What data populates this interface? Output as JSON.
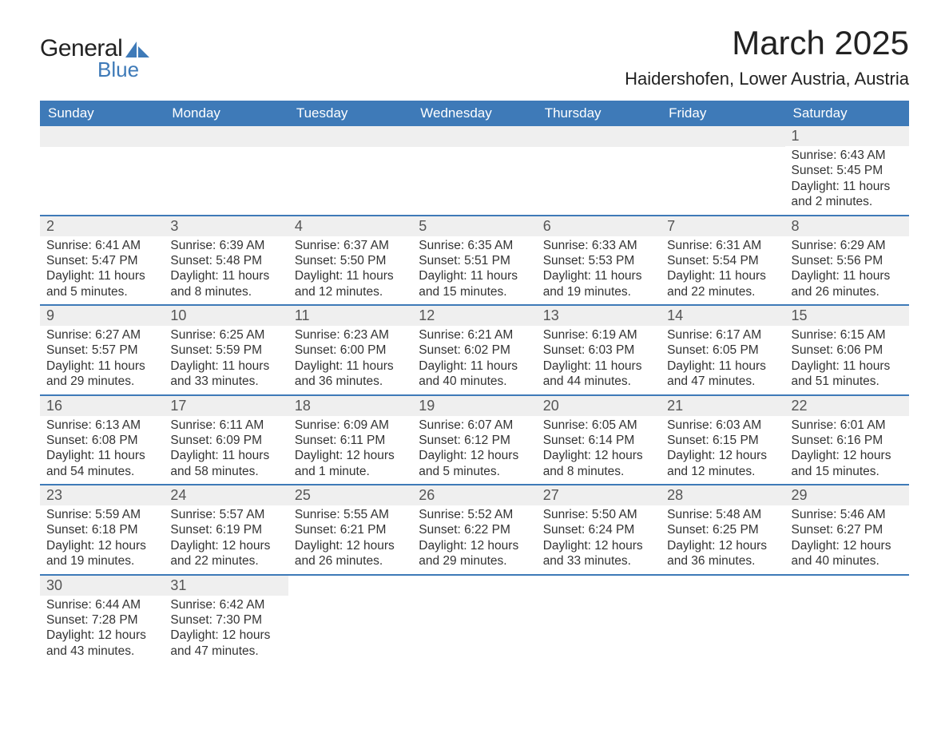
{
  "logo": {
    "general": "General",
    "blue": "Blue"
  },
  "title": "March 2025",
  "location": "Haidershofen, Lower Austria, Austria",
  "colors": {
    "header_bg": "#3e7ab8",
    "header_text": "#ffffff",
    "daynum_bg": "#efefef",
    "row_border": "#3e7ab8",
    "body_text": "#333333"
  },
  "weekdays": [
    "Sunday",
    "Monday",
    "Tuesday",
    "Wednesday",
    "Thursday",
    "Friday",
    "Saturday"
  ],
  "calendar": {
    "first_weekday_index": 6,
    "num_days": 31,
    "days": {
      "1": {
        "sunrise": "6:43 AM",
        "sunset": "5:45 PM",
        "daylight": "11 hours and 2 minutes."
      },
      "2": {
        "sunrise": "6:41 AM",
        "sunset": "5:47 PM",
        "daylight": "11 hours and 5 minutes."
      },
      "3": {
        "sunrise": "6:39 AM",
        "sunset": "5:48 PM",
        "daylight": "11 hours and 8 minutes."
      },
      "4": {
        "sunrise": "6:37 AM",
        "sunset": "5:50 PM",
        "daylight": "11 hours and 12 minutes."
      },
      "5": {
        "sunrise": "6:35 AM",
        "sunset": "5:51 PM",
        "daylight": "11 hours and 15 minutes."
      },
      "6": {
        "sunrise": "6:33 AM",
        "sunset": "5:53 PM",
        "daylight": "11 hours and 19 minutes."
      },
      "7": {
        "sunrise": "6:31 AM",
        "sunset": "5:54 PM",
        "daylight": "11 hours and 22 minutes."
      },
      "8": {
        "sunrise": "6:29 AM",
        "sunset": "5:56 PM",
        "daylight": "11 hours and 26 minutes."
      },
      "9": {
        "sunrise": "6:27 AM",
        "sunset": "5:57 PM",
        "daylight": "11 hours and 29 minutes."
      },
      "10": {
        "sunrise": "6:25 AM",
        "sunset": "5:59 PM",
        "daylight": "11 hours and 33 minutes."
      },
      "11": {
        "sunrise": "6:23 AM",
        "sunset": "6:00 PM",
        "daylight": "11 hours and 36 minutes."
      },
      "12": {
        "sunrise": "6:21 AM",
        "sunset": "6:02 PM",
        "daylight": "11 hours and 40 minutes."
      },
      "13": {
        "sunrise": "6:19 AM",
        "sunset": "6:03 PM",
        "daylight": "11 hours and 44 minutes."
      },
      "14": {
        "sunrise": "6:17 AM",
        "sunset": "6:05 PM",
        "daylight": "11 hours and 47 minutes."
      },
      "15": {
        "sunrise": "6:15 AM",
        "sunset": "6:06 PM",
        "daylight": "11 hours and 51 minutes."
      },
      "16": {
        "sunrise": "6:13 AM",
        "sunset": "6:08 PM",
        "daylight": "11 hours and 54 minutes."
      },
      "17": {
        "sunrise": "6:11 AM",
        "sunset": "6:09 PM",
        "daylight": "11 hours and 58 minutes."
      },
      "18": {
        "sunrise": "6:09 AM",
        "sunset": "6:11 PM",
        "daylight": "12 hours and 1 minute."
      },
      "19": {
        "sunrise": "6:07 AM",
        "sunset": "6:12 PM",
        "daylight": "12 hours and 5 minutes."
      },
      "20": {
        "sunrise": "6:05 AM",
        "sunset": "6:14 PM",
        "daylight": "12 hours and 8 minutes."
      },
      "21": {
        "sunrise": "6:03 AM",
        "sunset": "6:15 PM",
        "daylight": "12 hours and 12 minutes."
      },
      "22": {
        "sunrise": "6:01 AM",
        "sunset": "6:16 PM",
        "daylight": "12 hours and 15 minutes."
      },
      "23": {
        "sunrise": "5:59 AM",
        "sunset": "6:18 PM",
        "daylight": "12 hours and 19 minutes."
      },
      "24": {
        "sunrise": "5:57 AM",
        "sunset": "6:19 PM",
        "daylight": "12 hours and 22 minutes."
      },
      "25": {
        "sunrise": "5:55 AM",
        "sunset": "6:21 PM",
        "daylight": "12 hours and 26 minutes."
      },
      "26": {
        "sunrise": "5:52 AM",
        "sunset": "6:22 PM",
        "daylight": "12 hours and 29 minutes."
      },
      "27": {
        "sunrise": "5:50 AM",
        "sunset": "6:24 PM",
        "daylight": "12 hours and 33 minutes."
      },
      "28": {
        "sunrise": "5:48 AM",
        "sunset": "6:25 PM",
        "daylight": "12 hours and 36 minutes."
      },
      "29": {
        "sunrise": "5:46 AM",
        "sunset": "6:27 PM",
        "daylight": "12 hours and 40 minutes."
      },
      "30": {
        "sunrise": "6:44 AM",
        "sunset": "7:28 PM",
        "daylight": "12 hours and 43 minutes."
      },
      "31": {
        "sunrise": "6:42 AM",
        "sunset": "7:30 PM",
        "daylight": "12 hours and 47 minutes."
      }
    }
  },
  "labels": {
    "sunrise_prefix": "Sunrise: ",
    "sunset_prefix": "Sunset: ",
    "daylight_prefix": "Daylight: "
  }
}
